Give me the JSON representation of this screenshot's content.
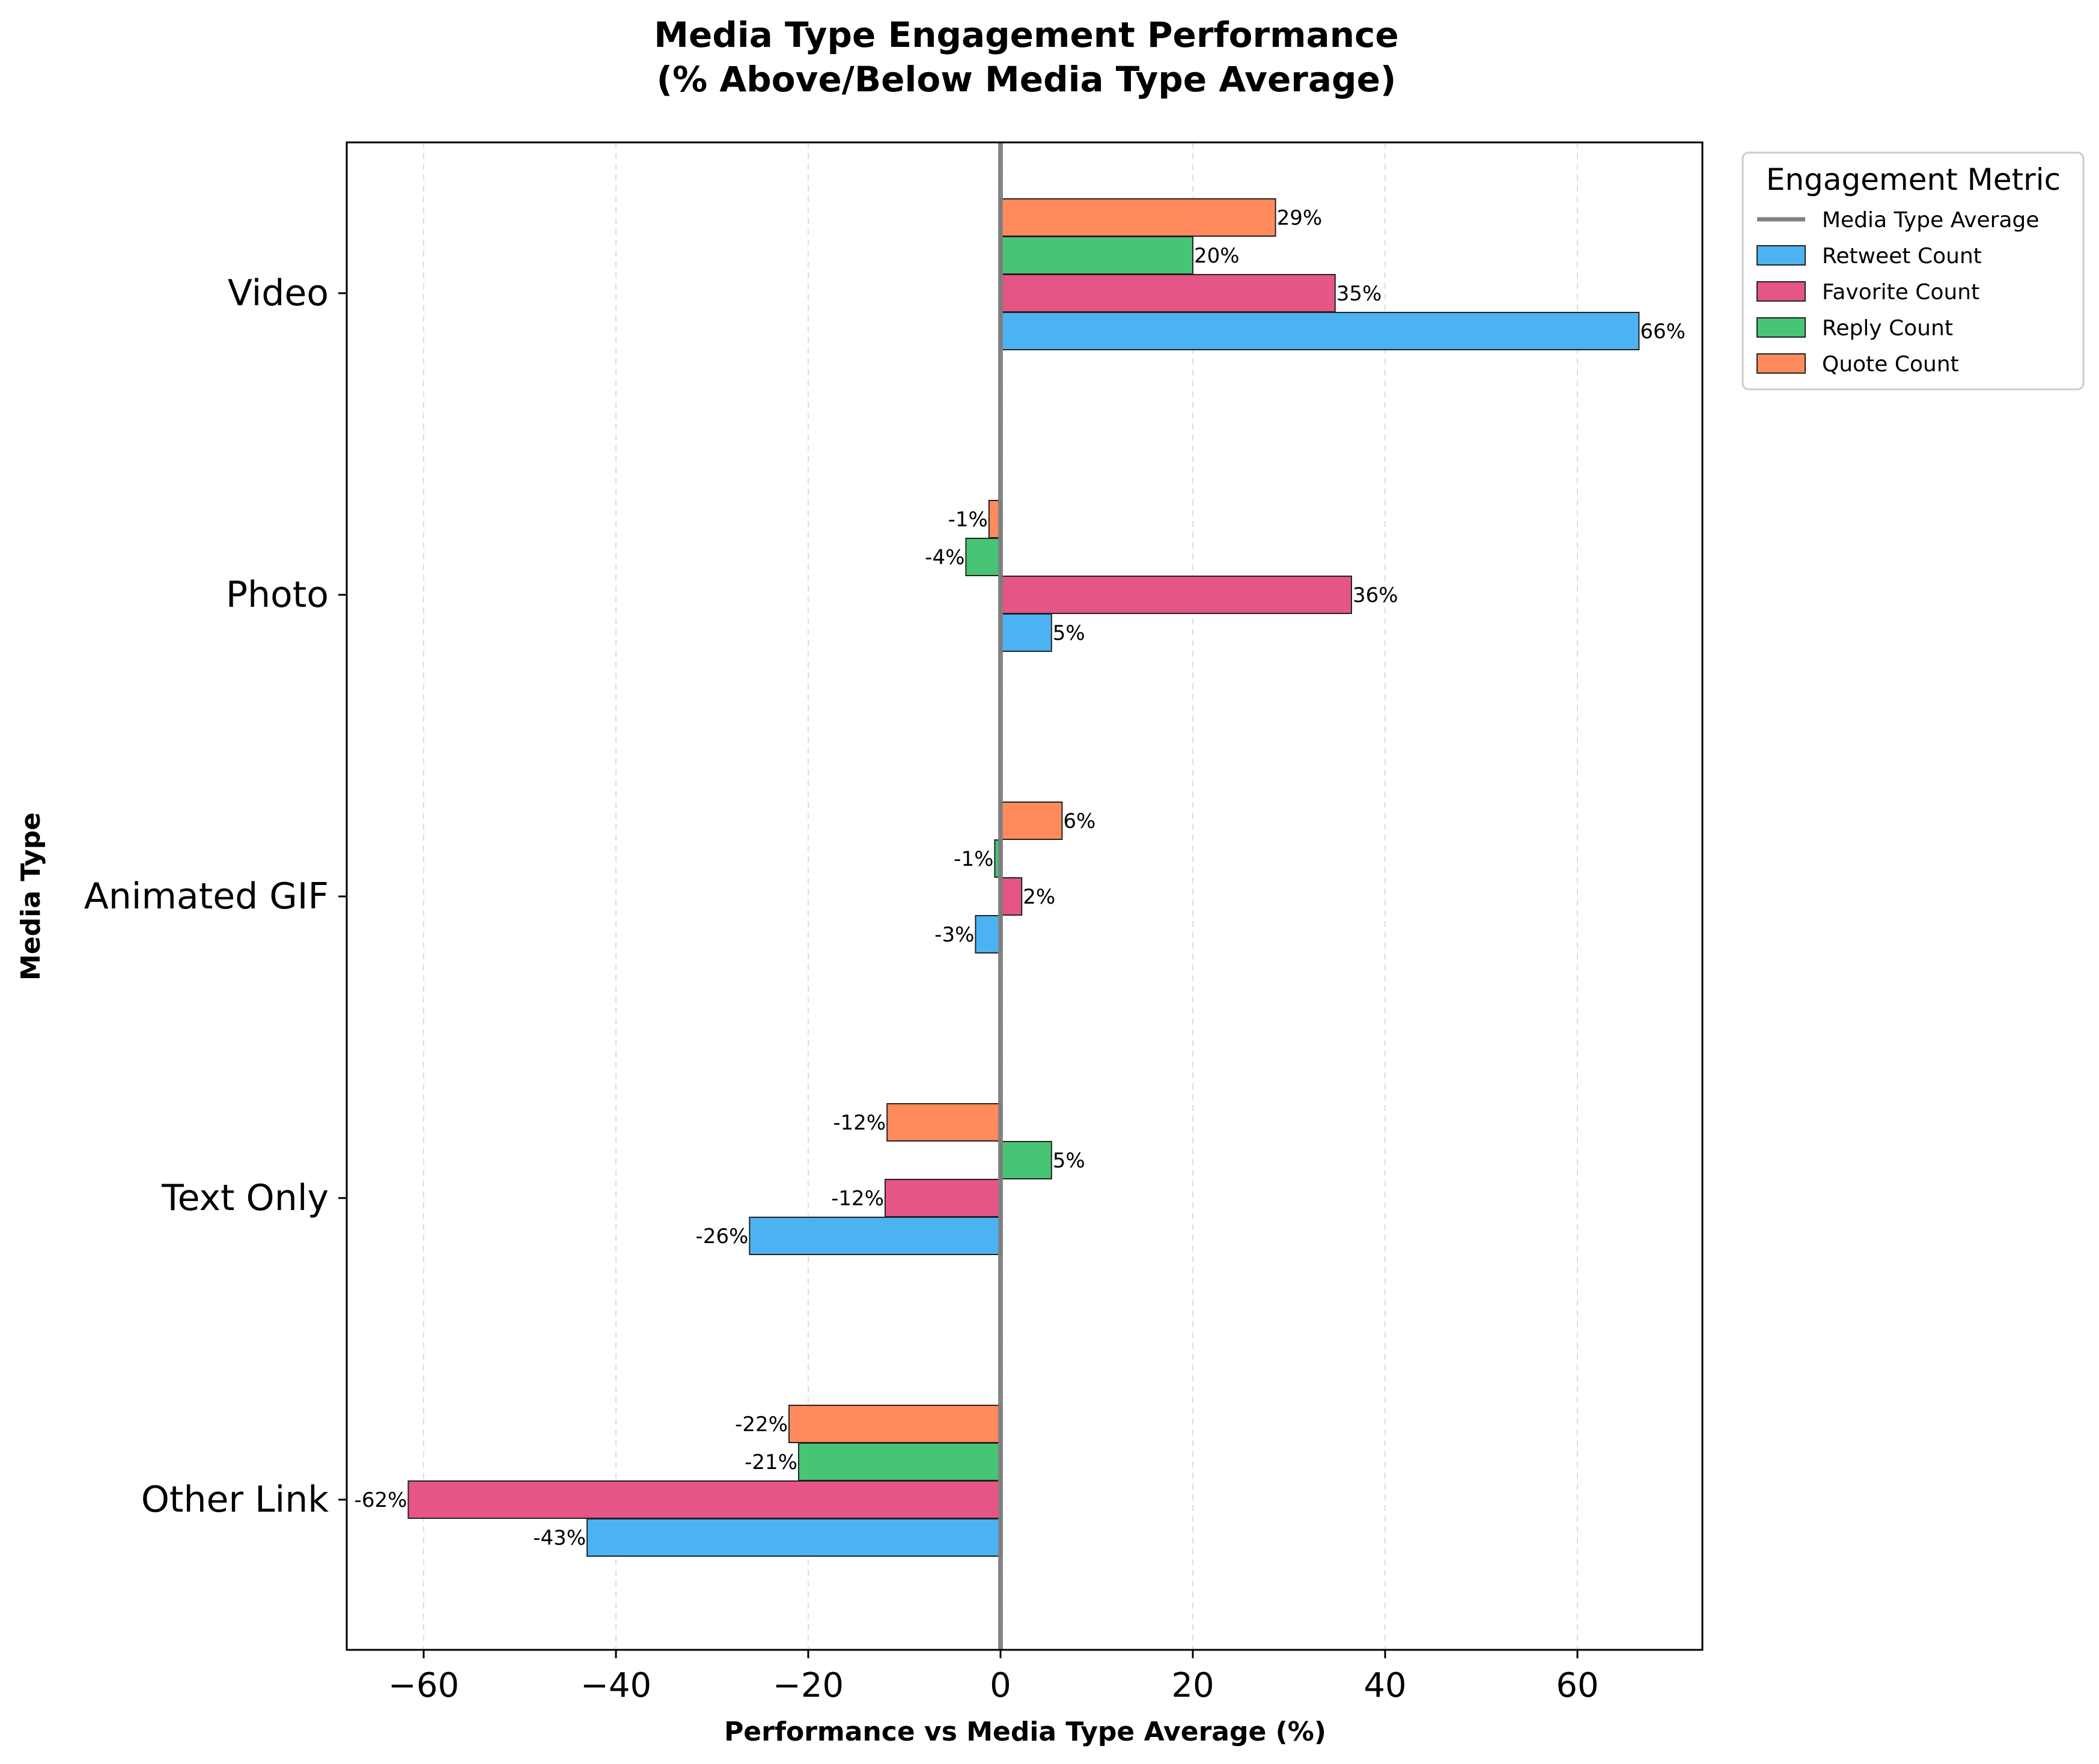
{
  "chart_data": {
    "type": "bar",
    "orientation": "horizontal",
    "title_line1": "Media Type Engagement Performance",
    "title_line2": "(% Above/Below Media Type Average)",
    "xlabel": "Performance vs Media Type Average (%)",
    "ylabel": "Media Type",
    "xlim": [
      -68,
      73
    ],
    "xticks": [
      -60,
      -40,
      -20,
      0,
      20,
      40,
      60
    ],
    "xtick_labels": [
      "−60",
      "−40",
      "−20",
      "0",
      "20",
      "40",
      "60"
    ],
    "grid": "x dashed",
    "categories": [
      "Video",
      "Photo",
      "Animated GIF",
      "Text Only",
      "Other Link"
    ],
    "series": [
      {
        "name": "Retweet Count",
        "color": "#4BB3F2",
        "values": [
          66.4,
          5.3,
          -2.6,
          -26.1,
          -43.0
        ],
        "labels": [
          "66%",
          "5%",
          "-3%",
          "-26%",
          "-43%"
        ]
      },
      {
        "name": "Favorite Count",
        "color": "#E55585",
        "values": [
          34.8,
          36.5,
          2.2,
          -12.0,
          -61.6
        ],
        "labels": [
          "35%",
          "36%",
          "2%",
          "-12%",
          "-62%"
        ]
      },
      {
        "name": "Reply Count",
        "color": "#48C574",
        "values": [
          20.0,
          -3.6,
          -0.6,
          5.3,
          -21.0
        ],
        "labels": [
          "20%",
          "-4%",
          "-1%",
          "5%",
          "-21%"
        ]
      },
      {
        "name": "Quote Count",
        "color": "#FF8A5C",
        "values": [
          28.6,
          -1.2,
          6.4,
          -11.8,
          -22.0
        ],
        "labels": [
          "29%",
          "-1%",
          "6%",
          "-12%",
          "-22%"
        ]
      }
    ],
    "reference_line": {
      "value": 0,
      "name": "Media Type Average",
      "color": "#808080"
    },
    "legend": {
      "title": "Engagement Metric",
      "placement": "outside-top-right"
    }
  }
}
